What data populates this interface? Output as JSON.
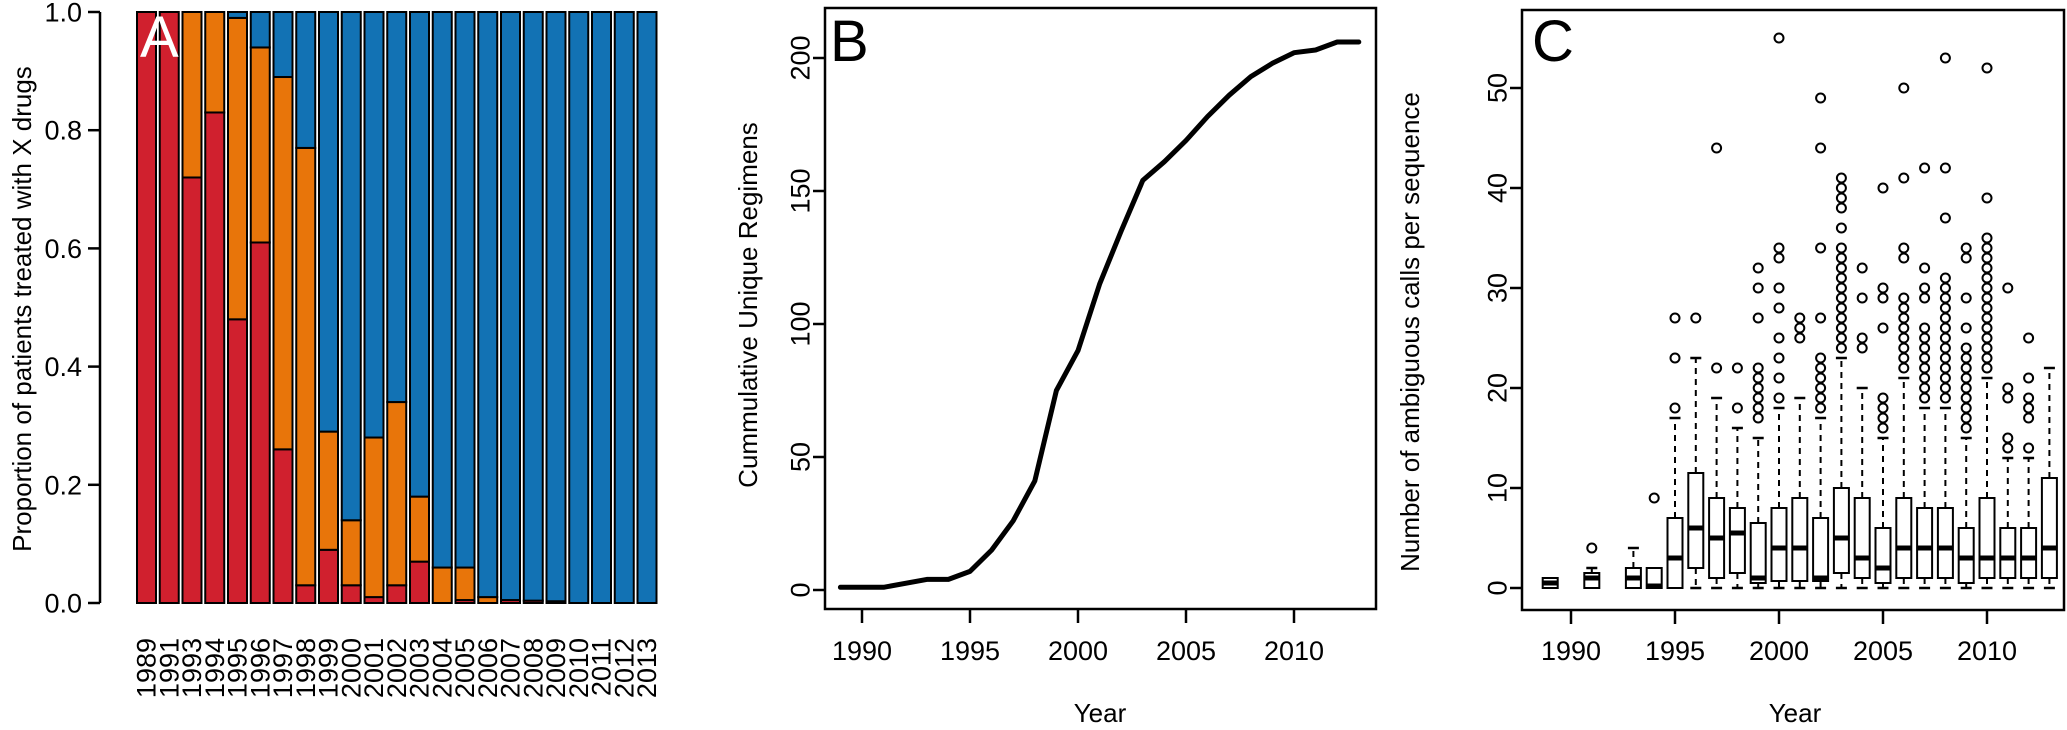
{
  "panels": {
    "a": {
      "label": "A",
      "ylabel": "Proportion of patients treated with X drugs"
    },
    "b": {
      "label": "B",
      "ylabel": "Cummulative Unique Regimens",
      "xlabel": "Year"
    },
    "c": {
      "label": "C",
      "ylabel": "Number of ambiguous calls per sequence",
      "xlabel": "Year"
    }
  },
  "chart_data": [
    {
      "type": "bar",
      "stacked": true,
      "panel": "A",
      "title": "",
      "ylabel": "Proportion of patients treated with X drugs",
      "xlabel": "",
      "ylim": [
        0,
        1
      ],
      "yticks": [
        0,
        0.2,
        0.4,
        0.6,
        0.8,
        1
      ],
      "ytick_labels": [
        "0.0",
        "0.2",
        "0.4",
        "0.6",
        "0.8",
        "1.0"
      ],
      "categories": [
        "1989",
        "1991",
        "1993",
        "1994",
        "1995",
        "1996",
        "1997",
        "1998",
        "1999",
        "2000",
        "2001",
        "2002",
        "2003",
        "2004",
        "2005",
        "2006",
        "2007",
        "2008",
        "2009",
        "2010",
        "2011",
        "2012",
        "2013"
      ],
      "series": [
        {
          "name": "red",
          "color": "#d0202e",
          "values": [
            1.0,
            1.0,
            0.72,
            0.83,
            0.48,
            0.61,
            0.26,
            0.03,
            0.09,
            0.03,
            0.01,
            0.03,
            0.07,
            0.0,
            0.005,
            0.0,
            0.005,
            0.004,
            0.003,
            0,
            0,
            0,
            0
          ]
        },
        {
          "name": "orange",
          "color": "#e8750a",
          "values": [
            0,
            0,
            0.28,
            0.17,
            0.51,
            0.33,
            0.63,
            0.74,
            0.2,
            0.11,
            0.27,
            0.31,
            0.11,
            0.06,
            0.055,
            0.01,
            0,
            0,
            0,
            0,
            0,
            0,
            0
          ]
        },
        {
          "name": "blue",
          "color": "#1272b4",
          "values": [
            0,
            0,
            0,
            0,
            0.01,
            0.06,
            0.11,
            0.23,
            0.71,
            0.86,
            0.72,
            0.66,
            0.82,
            0.94,
            0.94,
            0.99,
            0.995,
            0.996,
            0.997,
            1,
            1,
            1,
            1
          ]
        }
      ]
    },
    {
      "type": "line",
      "panel": "B",
      "title": "",
      "xlabel": "Year",
      "ylabel": "Cummulative Unique Regimens",
      "xlim": [
        1989,
        2013
      ],
      "ylim": [
        0,
        210
      ],
      "xticks": [
        1990,
        1995,
        2000,
        2005,
        2010
      ],
      "yticks": [
        0,
        50,
        100,
        150,
        200
      ],
      "ytick_labels": [
        "0",
        "50",
        "100",
        "150",
        "200"
      ],
      "x": [
        1989,
        1991,
        1993,
        1994,
        1995,
        1996,
        1997,
        1998,
        1999,
        2000,
        2001,
        2002,
        2003,
        2004,
        2005,
        2006,
        2007,
        2008,
        2009,
        2010,
        2011,
        2012,
        2013
      ],
      "y": [
        1,
        1,
        4,
        4,
        7,
        15,
        26,
        41,
        75,
        90,
        115,
        135,
        154,
        161,
        169,
        178,
        186,
        193,
        198,
        202,
        203,
        206,
        206
      ]
    },
    {
      "type": "boxplot",
      "panel": "C",
      "title": "",
      "xlabel": "Year",
      "ylabel": "Number of ambiguous calls per sequence",
      "xlim": [
        1989,
        2013
      ],
      "ylim": [
        0,
        56
      ],
      "xticks": [
        1990,
        1995,
        2000,
        2005,
        2010
      ],
      "yticks": [
        0,
        10,
        20,
        30,
        40,
        50
      ],
      "ytick_labels": [
        "0",
        "10",
        "20",
        "30",
        "40",
        "50"
      ],
      "boxes": [
        {
          "year": 1989,
          "low": 0,
          "q1": 0,
          "med": 0.5,
          "q3": 1,
          "high": 1,
          "out": []
        },
        {
          "year": 1991,
          "low": 0,
          "q1": 0,
          "med": 1,
          "q3": 1.5,
          "high": 2,
          "out": [
            4
          ]
        },
        {
          "year": 1993,
          "low": 0,
          "q1": 0,
          "med": 1,
          "q3": 2,
          "high": 4,
          "out": []
        },
        {
          "year": 1994,
          "low": 0,
          "q1": 0,
          "med": 0.2,
          "q3": 2,
          "high": 2,
          "out": [
            9
          ]
        },
        {
          "year": 1995,
          "low": 0,
          "q1": 0,
          "med": 3,
          "q3": 7,
          "high": 17,
          "out": [
            18,
            23,
            27
          ]
        },
        {
          "year": 1996,
          "low": 0,
          "q1": 2,
          "med": 6,
          "q3": 11.5,
          "high": 23,
          "out": [
            27
          ]
        },
        {
          "year": 1997,
          "low": 0,
          "q1": 1,
          "med": 5,
          "q3": 9,
          "high": 19,
          "out": [
            22,
            44
          ]
        },
        {
          "year": 1998,
          "low": 0,
          "q1": 1.5,
          "med": 5.5,
          "q3": 8,
          "high": 16,
          "out": [
            18,
            22
          ]
        },
        {
          "year": 1999,
          "low": 0,
          "q1": 0.5,
          "med": 1,
          "q3": 6.5,
          "high": 15,
          "out": [
            17,
            18,
            19,
            20,
            21,
            22,
            27,
            30,
            32
          ]
        },
        {
          "year": 2000,
          "low": 0,
          "q1": 0.7,
          "med": 4,
          "q3": 8,
          "high": 18,
          "out": [
            19,
            21,
            23,
            25,
            28,
            30,
            33,
            34,
            55
          ]
        },
        {
          "year": 2001,
          "low": 0,
          "q1": 0.7,
          "med": 4,
          "q3": 9,
          "high": 19,
          "out": [
            25,
            26,
            27
          ]
        },
        {
          "year": 2002,
          "low": 0,
          "q1": 0.7,
          "med": 1,
          "q3": 7,
          "high": 17,
          "out": [
            18,
            19,
            20,
            21,
            22,
            23,
            27,
            34,
            44,
            49
          ]
        },
        {
          "year": 2003,
          "low": 0,
          "q1": 1.5,
          "med": 5,
          "q3": 10,
          "high": 23,
          "out": [
            24,
            25,
            26,
            27,
            28,
            29,
            30,
            31,
            32,
            33,
            34,
            36,
            38,
            39,
            40,
            41
          ]
        },
        {
          "year": 2004,
          "low": 0,
          "q1": 1,
          "med": 3,
          "q3": 9,
          "high": 20,
          "out": [
            24,
            25,
            29,
            32
          ]
        },
        {
          "year": 2005,
          "low": 0,
          "q1": 0.5,
          "med": 2,
          "q3": 6,
          "high": 15,
          "out": [
            16,
            17,
            18,
            19,
            26,
            29,
            30,
            40
          ]
        },
        {
          "year": 2006,
          "low": 0,
          "q1": 1,
          "med": 4,
          "q3": 9,
          "high": 21,
          "out": [
            22,
            23,
            24,
            25,
            26,
            27,
            28,
            29,
            33,
            34,
            41,
            50
          ]
        },
        {
          "year": 2007,
          "low": 0,
          "q1": 1,
          "med": 4,
          "q3": 8,
          "high": 18,
          "out": [
            19,
            20,
            21,
            22,
            23,
            24,
            25,
            26,
            29,
            30,
            32,
            42
          ]
        },
        {
          "year": 2008,
          "low": 0,
          "q1": 1,
          "med": 4,
          "q3": 8,
          "high": 18,
          "out": [
            19,
            20,
            21,
            22,
            23,
            24,
            25,
            26,
            27,
            28,
            29,
            30,
            31,
            37,
            42,
            53
          ]
        },
        {
          "year": 2009,
          "low": 0,
          "q1": 0.5,
          "med": 3,
          "q3": 6,
          "high": 15,
          "out": [
            16,
            17,
            18,
            19,
            20,
            21,
            22,
            23,
            24,
            26,
            29,
            33,
            34
          ]
        },
        {
          "year": 2010,
          "low": 0,
          "q1": 1,
          "med": 3,
          "q3": 9,
          "high": 21,
          "out": [
            22,
            23,
            24,
            25,
            26,
            27,
            28,
            29,
            30,
            31,
            32,
            33,
            34,
            35,
            39,
            52
          ]
        },
        {
          "year": 2011,
          "low": 0,
          "q1": 1,
          "med": 3,
          "q3": 6,
          "high": 13,
          "out": [
            14,
            15,
            19,
            20,
            30
          ]
        },
        {
          "year": 2012,
          "low": 0,
          "q1": 1,
          "med": 3,
          "q3": 6,
          "high": 13,
          "out": [
            14,
            17,
            18,
            19,
            21,
            25
          ]
        },
        {
          "year": 2013,
          "low": 0,
          "q1": 1,
          "med": 4,
          "q3": 11,
          "high": 22,
          "out": []
        }
      ]
    }
  ]
}
